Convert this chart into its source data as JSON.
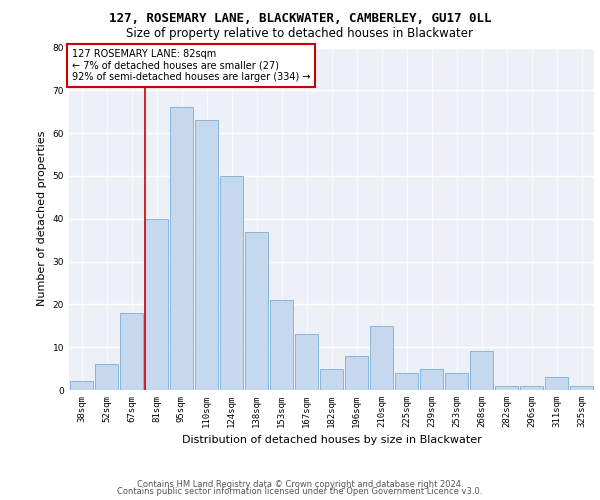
{
  "title1": "127, ROSEMARY LANE, BLACKWATER, CAMBERLEY, GU17 0LL",
  "title2": "Size of property relative to detached houses in Blackwater",
  "xlabel": "Distribution of detached houses by size in Blackwater",
  "ylabel": "Number of detached properties",
  "categories": [
    "38sqm",
    "52sqm",
    "67sqm",
    "81sqm",
    "95sqm",
    "110sqm",
    "124sqm",
    "138sqm",
    "153sqm",
    "167sqm",
    "182sqm",
    "196sqm",
    "210sqm",
    "225sqm",
    "239sqm",
    "253sqm",
    "268sqm",
    "282sqm",
    "296sqm",
    "311sqm",
    "325sqm"
  ],
  "values": [
    2,
    6,
    18,
    40,
    66,
    63,
    50,
    37,
    21,
    13,
    5,
    8,
    15,
    4,
    5,
    4,
    9,
    1,
    1,
    3,
    1
  ],
  "bar_color": "#c5d8ed",
  "bar_edgecolor": "#7aaed6",
  "property_line_index": 3,
  "annotation_line1": "127 ROSEMARY LANE: 82sqm",
  "annotation_line2": "← 7% of detached houses are smaller (27)",
  "annotation_line3": "92% of semi-detached houses are larger (334) →",
  "annotation_box_color": "#ffffff",
  "annotation_box_edgecolor": "#cc0000",
  "vline_color": "#cc0000",
  "ylim": [
    0,
    80
  ],
  "footer1": "Contains HM Land Registry data © Crown copyright and database right 2024.",
  "footer2": "Contains public sector information licensed under the Open Government Licence v3.0.",
  "background_color": "#edf1f7",
  "grid_color": "#ffffff",
  "title1_fontsize": 9,
  "title2_fontsize": 8.5,
  "ylabel_fontsize": 8,
  "xlabel_fontsize": 8,
  "tick_fontsize": 6.5,
  "annotation_fontsize": 7,
  "footer_fontsize": 6
}
